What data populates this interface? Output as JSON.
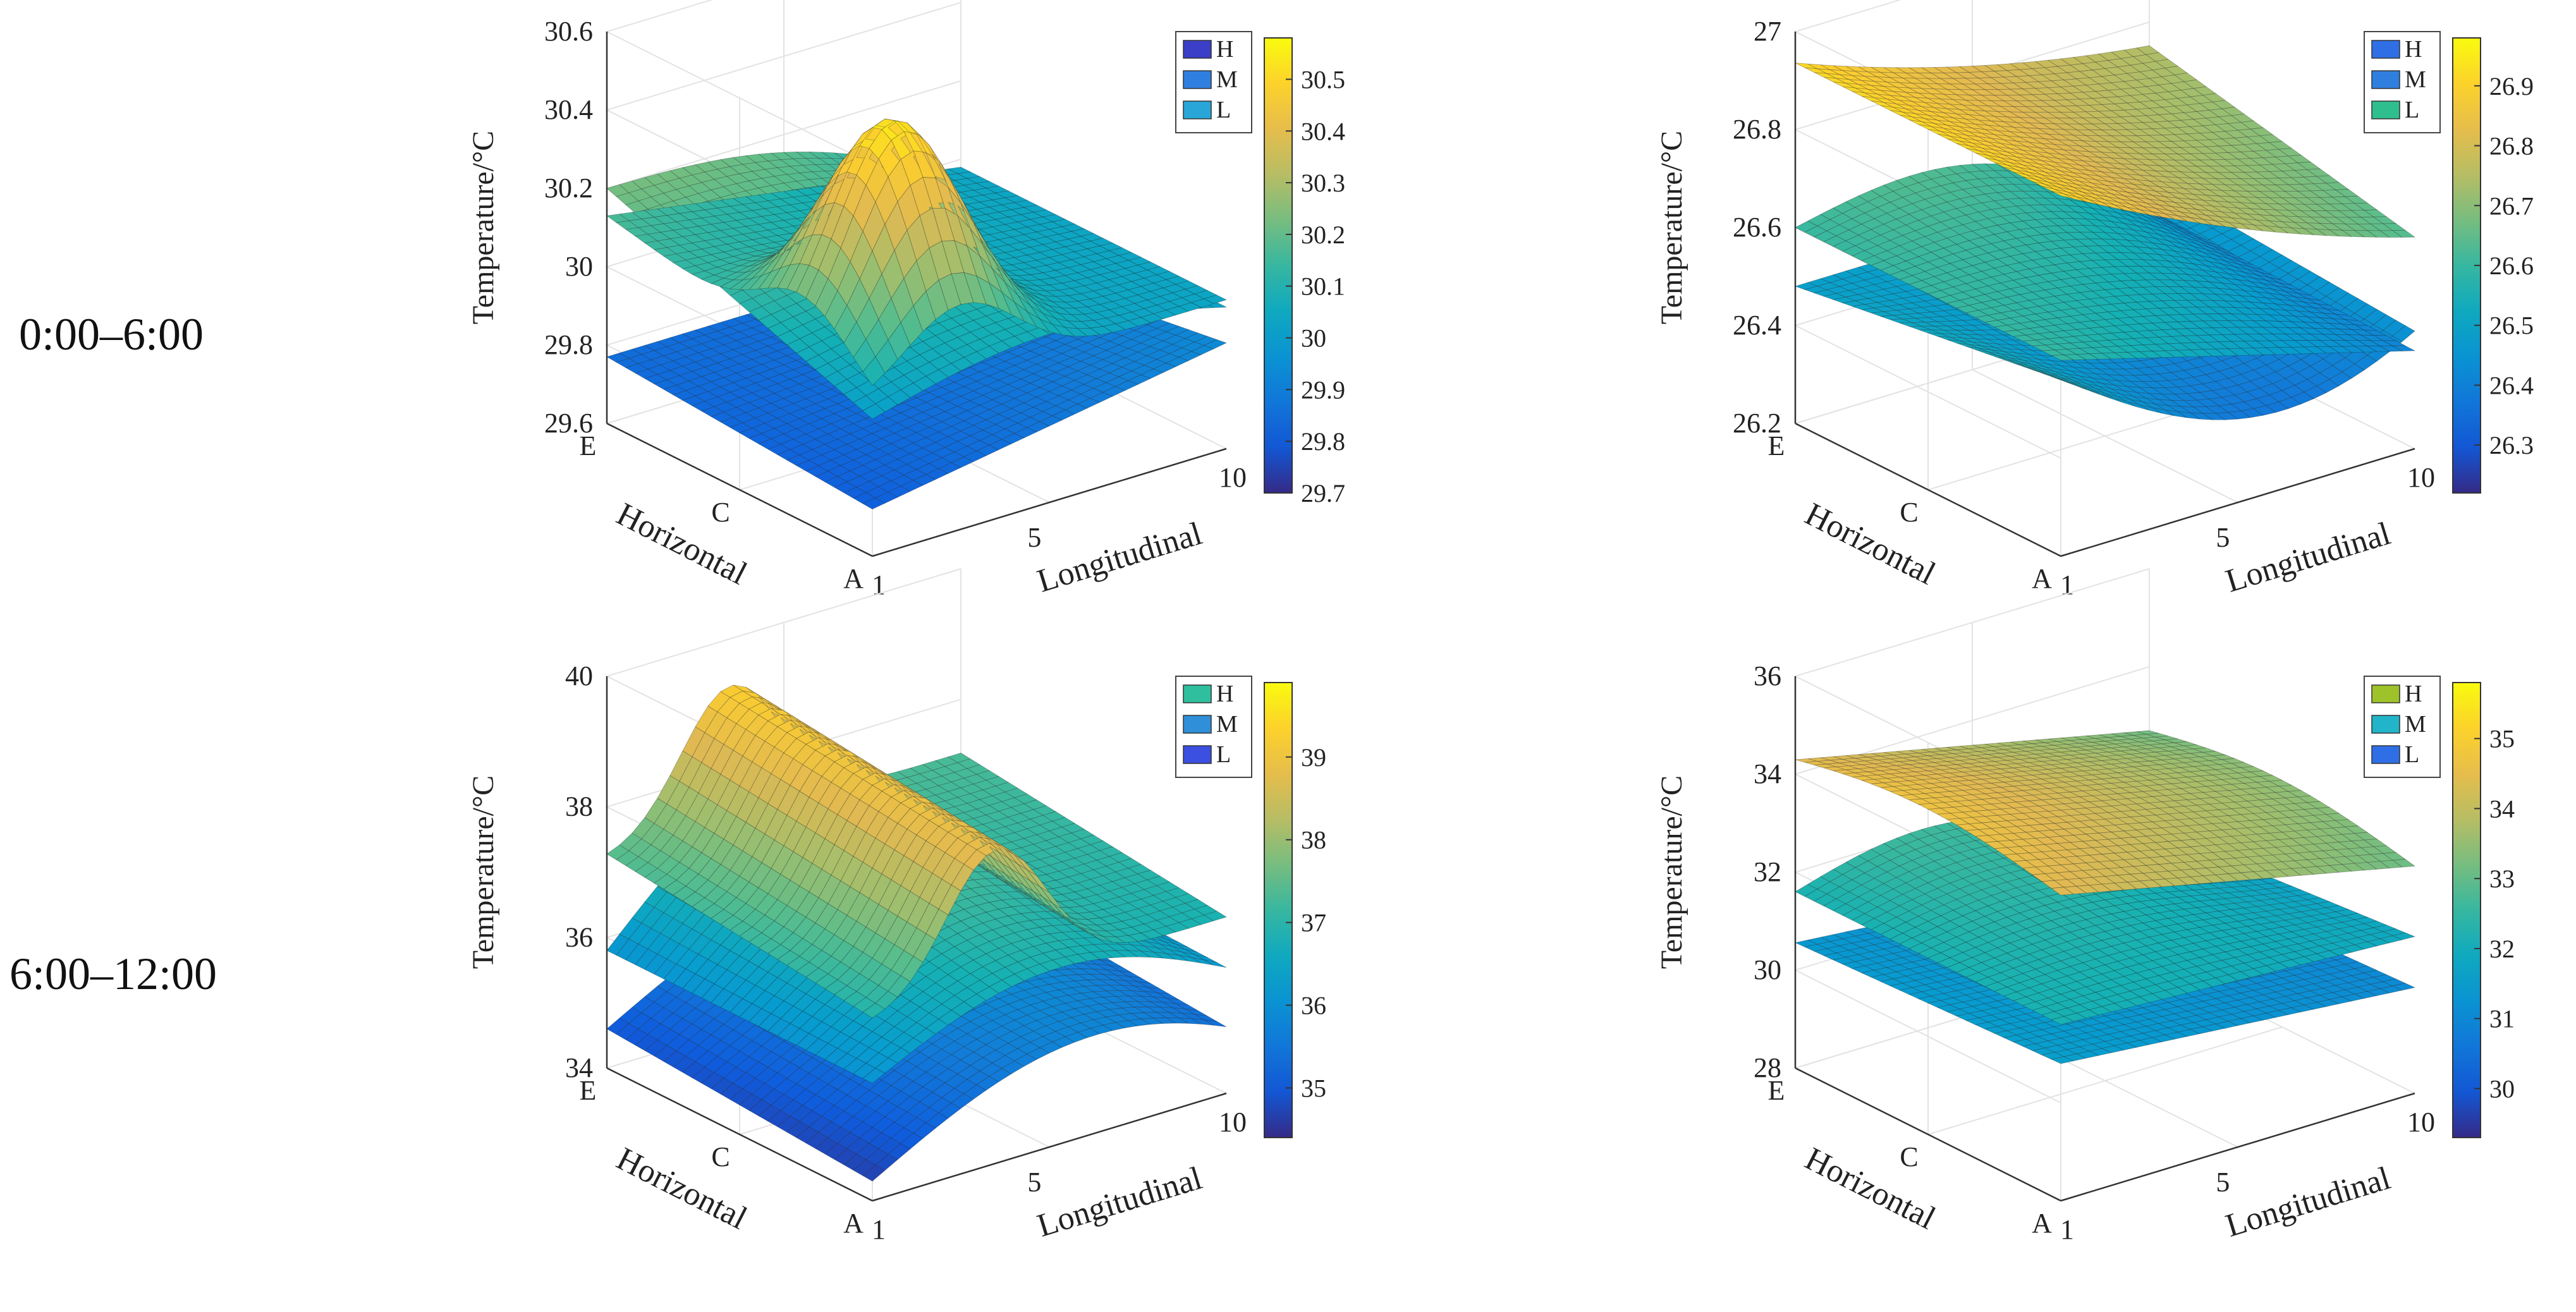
{
  "row_labels": [
    "0:00–6:00",
    "6:00–12:00"
  ],
  "chart_data": [
    {
      "type": "surface3d",
      "time_period": "0:00–6:00",
      "zlabel": "Temperature/°C",
      "xlabel": "Longitudinal",
      "ylabel": "Horizontal",
      "x_ticks": [
        "1",
        "5",
        "10"
      ],
      "y_ticks": [
        "A",
        "C",
        "E"
      ],
      "z_ticks": [
        "29.6",
        "29.8",
        "30",
        "30.2",
        "30.4",
        "30.6"
      ],
      "zlim": [
        29.6,
        30.6
      ],
      "legend": [
        "H",
        "M",
        "L"
      ],
      "colorbar_ticks": [
        "29.7",
        "29.8",
        "29.9",
        "30",
        "30.1",
        "30.2",
        "30.3",
        "30.4",
        "30.5"
      ],
      "colorbar_range": [
        29.7,
        30.58
      ],
      "legend_colors": [
        "#3b3ec6",
        "#2f7fe0",
        "#28a6d8"
      ]
    },
    {
      "type": "surface3d",
      "time_period": "0:00–6:00",
      "zlabel": "Temperature/°C",
      "xlabel": "Longitudinal",
      "ylabel": "Horizontal",
      "x_ticks": [
        "1",
        "5",
        "10"
      ],
      "y_ticks": [
        "A",
        "C",
        "E"
      ],
      "z_ticks": [
        "26.2",
        "26.4",
        "26.6",
        "26.8",
        "27"
      ],
      "zlim": [
        26.2,
        27.0
      ],
      "legend": [
        "H",
        "M",
        "L"
      ],
      "colorbar_ticks": [
        "26.3",
        "26.4",
        "26.5",
        "26.6",
        "26.7",
        "26.8",
        "26.9"
      ],
      "colorbar_range": [
        26.22,
        26.98
      ],
      "legend_colors": [
        "#2f6fe6",
        "#2f7fe0",
        "#2fbf8f"
      ]
    },
    {
      "type": "surface3d",
      "time_period": "6:00–12:00",
      "zlabel": "Temperature/°C",
      "xlabel": "Longitudinal",
      "ylabel": "Horizontal",
      "x_ticks": [
        "1",
        "5",
        "10"
      ],
      "y_ticks": [
        "A",
        "C",
        "E"
      ],
      "z_ticks": [
        "34",
        "36",
        "38",
        "40"
      ],
      "zlim": [
        34,
        40
      ],
      "legend": [
        "H",
        "M",
        "L"
      ],
      "colorbar_ticks": [
        "35",
        "36",
        "37",
        "38",
        "39"
      ],
      "colorbar_range": [
        34.4,
        39.9
      ],
      "legend_colors": [
        "#2fbf9f",
        "#2f8fd8",
        "#3b4fe0"
      ]
    },
    {
      "type": "surface3d",
      "time_period": "6:00–12:00",
      "zlabel": "Temperature/°C",
      "xlabel": "Longitudinal",
      "ylabel": "Horizontal",
      "x_ticks": [
        "1",
        "5",
        "10"
      ],
      "y_ticks": [
        "A",
        "C",
        "E"
      ],
      "z_ticks": [
        "28",
        "30",
        "32",
        "34",
        "36"
      ],
      "zlim": [
        28,
        36
      ],
      "legend": [
        "H",
        "M",
        "L"
      ],
      "colorbar_ticks": [
        "30",
        "31",
        "32",
        "33",
        "34",
        "35"
      ],
      "colorbar_range": [
        29.3,
        35.8
      ],
      "legend_colors": [
        "#9ec22a",
        "#22b4c8",
        "#2f6fe6"
      ]
    }
  ]
}
